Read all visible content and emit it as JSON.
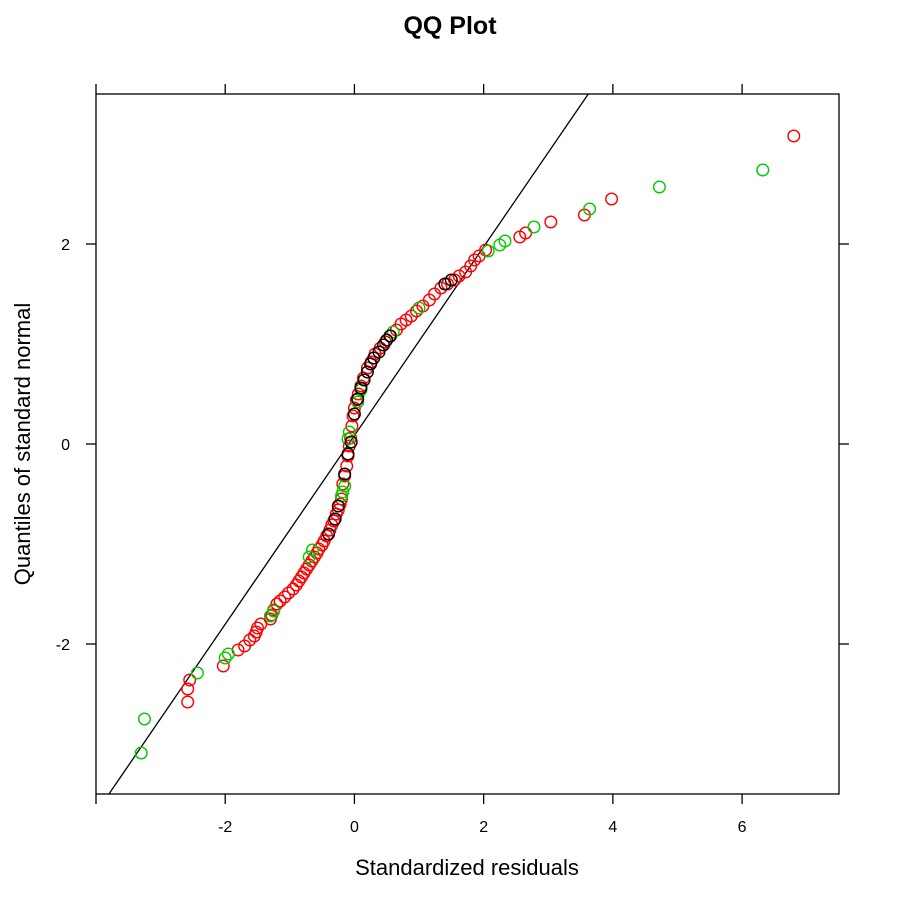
{
  "chart_data": {
    "type": "scatter",
    "title": "QQ Plot",
    "xlabel": "Standardized residuals",
    "ylabel": "Quantiles of standard normal",
    "xlim": [
      -4.0,
      7.5
    ],
    "ylim": [
      -3.5,
      3.5
    ],
    "xticks": [
      -2,
      0,
      2,
      4,
      6
    ],
    "yticks": [
      -2,
      0,
      2
    ],
    "grid": false,
    "legend": "none",
    "reference_line": {
      "intercept": 0.085,
      "slope": 0.9435
    },
    "series": [
      {
        "color": "#ff0000",
        "points": [
          [
            -2.58,
            -2.58
          ],
          [
            -2.58,
            -2.45
          ],
          [
            -2.55,
            -2.36
          ],
          [
            -2.03,
            -2.22
          ],
          [
            -1.8,
            -2.06
          ],
          [
            -1.7,
            -2.02
          ],
          [
            -1.62,
            -1.96
          ],
          [
            -1.55,
            -1.92
          ],
          [
            -1.52,
            -1.88
          ],
          [
            -1.5,
            -1.84
          ],
          [
            -1.45,
            -1.8
          ],
          [
            -1.3,
            -1.75
          ],
          [
            -1.28,
            -1.71
          ],
          [
            -1.25,
            -1.66
          ],
          [
            -1.2,
            -1.6
          ],
          [
            -1.15,
            -1.57
          ],
          [
            -1.08,
            -1.53
          ],
          [
            -1.02,
            -1.49
          ],
          [
            -0.95,
            -1.45
          ],
          [
            -0.9,
            -1.41
          ],
          [
            -0.86,
            -1.37
          ],
          [
            -0.82,
            -1.33
          ],
          [
            -0.78,
            -1.29
          ],
          [
            -0.74,
            -1.25
          ],
          [
            -0.7,
            -1.21
          ],
          [
            -0.66,
            -1.17
          ],
          [
            -0.62,
            -1.13
          ],
          [
            -0.58,
            -1.09
          ],
          [
            -0.55,
            -1.05
          ],
          [
            -0.5,
            -1.01
          ],
          [
            -0.47,
            -0.97
          ],
          [
            -0.43,
            -0.92
          ],
          [
            -0.38,
            -0.86
          ],
          [
            -0.35,
            -0.81
          ],
          [
            -0.32,
            -0.77
          ],
          [
            -0.28,
            -0.7
          ],
          [
            -0.25,
            -0.66
          ],
          [
            -0.22,
            -0.6
          ],
          [
            -0.2,
            -0.55
          ],
          [
            -0.18,
            -0.4
          ],
          [
            -0.15,
            -0.32
          ],
          [
            -0.12,
            -0.22
          ],
          [
            -0.1,
            -0.12
          ],
          [
            -0.08,
            -0.02
          ],
          [
            -0.06,
            0.06
          ],
          [
            -0.04,
            0.18
          ],
          [
            -0.02,
            0.28
          ],
          [
            0.0,
            0.36
          ],
          [
            0.03,
            0.44
          ],
          [
            0.06,
            0.5
          ],
          [
            0.1,
            0.58
          ],
          [
            0.14,
            0.66
          ],
          [
            0.2,
            0.76
          ],
          [
            0.26,
            0.82
          ],
          [
            0.32,
            0.9
          ],
          [
            0.4,
            0.96
          ],
          [
            0.48,
            1.02
          ],
          [
            0.56,
            1.08
          ],
          [
            0.65,
            1.14
          ],
          [
            0.72,
            1.2
          ],
          [
            0.8,
            1.24
          ],
          [
            0.88,
            1.28
          ],
          [
            0.96,
            1.33
          ],
          [
            1.06,
            1.38
          ],
          [
            1.16,
            1.44
          ],
          [
            1.24,
            1.5
          ],
          [
            1.34,
            1.56
          ],
          [
            1.44,
            1.6
          ],
          [
            1.55,
            1.64
          ],
          [
            1.62,
            1.68
          ],
          [
            1.72,
            1.72
          ],
          [
            1.8,
            1.78
          ],
          [
            1.86,
            1.84
          ],
          [
            1.93,
            1.88
          ],
          [
            2.03,
            1.94
          ],
          [
            2.56,
            2.07
          ],
          [
            2.65,
            2.11
          ],
          [
            3.04,
            2.22
          ],
          [
            3.56,
            2.29
          ],
          [
            3.98,
            2.45
          ],
          [
            6.8,
            3.08
          ]
        ]
      },
      {
        "color": "#00cc00",
        "points": [
          [
            -3.3,
            -3.09
          ],
          [
            -3.25,
            -2.75
          ],
          [
            -2.43,
            -2.29
          ],
          [
            -2.0,
            -2.14
          ],
          [
            -1.95,
            -2.1
          ],
          [
            -1.3,
            -1.72
          ],
          [
            -1.25,
            -1.67
          ],
          [
            -0.7,
            -1.13
          ],
          [
            -0.65,
            -1.06
          ],
          [
            -0.2,
            -0.52
          ],
          [
            -0.18,
            -0.48
          ],
          [
            -0.15,
            -0.42
          ],
          [
            -0.1,
            0.05
          ],
          [
            -0.08,
            0.12
          ],
          [
            0.05,
            0.42
          ],
          [
            0.1,
            0.54
          ],
          [
            0.6,
            1.12
          ],
          [
            1.0,
            1.36
          ],
          [
            2.07,
            1.93
          ],
          [
            2.25,
            1.99
          ],
          [
            2.33,
            2.03
          ],
          [
            2.78,
            2.17
          ],
          [
            3.64,
            2.35
          ],
          [
            4.72,
            2.57
          ],
          [
            6.32,
            2.74
          ]
        ]
      },
      {
        "color": "#000000",
        "points": [
          [
            -0.4,
            -0.9
          ],
          [
            -0.3,
            -0.75
          ],
          [
            -0.25,
            -0.62
          ],
          [
            -0.15,
            -0.3
          ],
          [
            -0.1,
            -0.1
          ],
          [
            -0.05,
            0.02
          ],
          [
            0.0,
            0.3
          ],
          [
            0.05,
            0.45
          ],
          [
            0.1,
            0.56
          ],
          [
            0.15,
            0.64
          ],
          [
            0.2,
            0.72
          ],
          [
            0.25,
            0.8
          ],
          [
            0.3,
            0.86
          ],
          [
            0.38,
            0.92
          ],
          [
            0.45,
            0.99
          ],
          [
            0.5,
            1.04
          ],
          [
            0.55,
            1.08
          ],
          [
            1.4,
            1.6
          ],
          [
            1.5,
            1.64
          ]
        ]
      }
    ]
  }
}
